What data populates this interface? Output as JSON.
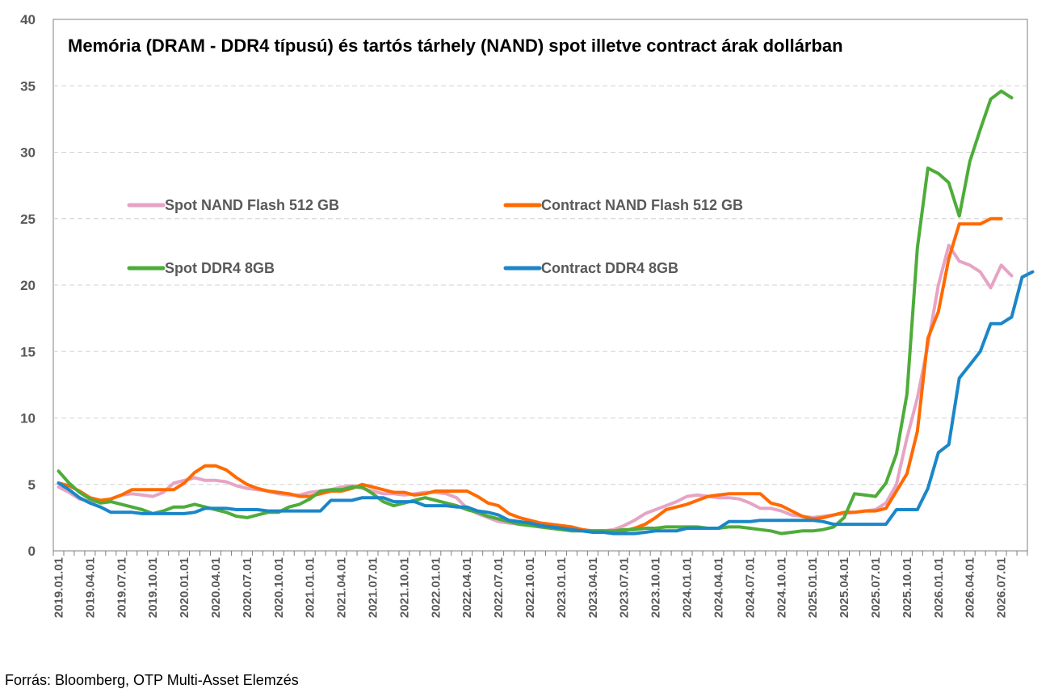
{
  "chart_data": {
    "type": "line",
    "title": "Memória (DRAM - DDR4 típusú) és tartós tárhely (NAND) spot illetve contract árak dollárban",
    "xlabel": "",
    "ylabel": "",
    "ylim": [
      0,
      40
    ],
    "yticks": [
      "0",
      "5",
      "10",
      "15",
      "20",
      "25",
      "30",
      "35",
      "40"
    ],
    "grid": true,
    "legend_position": "upper-left, two columns",
    "x_tick_labels": [
      "2019.01.01",
      "2019.04.01",
      "2019.07.01",
      "2019.10.01",
      "2020.01.01",
      "2020.04.01",
      "2020.07.01",
      "2020.10.01",
      "2021.01.01",
      "2021.04.01",
      "2021.07.01",
      "2021.10.01",
      "2022.01.01",
      "2022.04.01",
      "2022.07.01",
      "2022.10.01",
      "2023.01.01",
      "2023.04.01",
      "2023.07.01",
      "2023.10.01",
      "2024.01.01",
      "2024.04.01",
      "2024.07.01",
      "2024.10.01",
      "2025.01.01",
      "2025.04.01",
      "2025.07.01",
      "2025.10.01",
      "2026.01.01",
      "2026.04.01",
      "2026.07.01"
    ],
    "x_start_month": "2019.01",
    "series": [
      {
        "name": "Spot NAND Flash 512 GB",
        "color": "#E6A4C4",
        "values": [
          4.8,
          4.4,
          3.9,
          3.7,
          3.7,
          3.9,
          4.2,
          4.3,
          4.2,
          4.1,
          4.4,
          5.1,
          5.3,
          5.5,
          5.3,
          5.3,
          5.2,
          4.9,
          4.7,
          4.6,
          4.5,
          4.3,
          4.2,
          4.2,
          4.4,
          4.5,
          4.6,
          4.8,
          4.9,
          4.7,
          4.5,
          4.3,
          4.3,
          4.2,
          4.3,
          4.4,
          4.4,
          4.3,
          4.0,
          3.2,
          2.8,
          2.5,
          2.2,
          2.1,
          2.0,
          1.9,
          1.8,
          1.7,
          1.6,
          1.5,
          1.5,
          1.5,
          1.5,
          1.6,
          1.9,
          2.3,
          2.8,
          3.1,
          3.4,
          3.7,
          4.1,
          4.2,
          4.1,
          4.0,
          4.0,
          3.9,
          3.6,
          3.2,
          3.2,
          3.0,
          2.7,
          2.6,
          2.5,
          2.6,
          2.7,
          2.8,
          2.9,
          3.0,
          3.1,
          3.6,
          5.0,
          8.5,
          11.5,
          15.5,
          20.0,
          23.0,
          21.8,
          21.5,
          21.0,
          19.8,
          21.5,
          20.7
        ]
      },
      {
        "name": "Contract NAND Flash 512 GB",
        "color": "#FF6A00",
        "values": [
          5.1,
          4.9,
          4.5,
          4.0,
          3.8,
          3.9,
          4.2,
          4.6,
          4.6,
          4.6,
          4.6,
          4.6,
          5.1,
          5.9,
          6.4,
          6.4,
          6.1,
          5.5,
          5.0,
          4.7,
          4.5,
          4.4,
          4.3,
          4.1,
          4.1,
          4.3,
          4.5,
          4.5,
          4.7,
          5.0,
          4.8,
          4.6,
          4.4,
          4.4,
          4.2,
          4.3,
          4.5,
          4.5,
          4.5,
          4.5,
          4.1,
          3.6,
          3.4,
          2.8,
          2.5,
          2.3,
          2.1,
          2.0,
          1.9,
          1.8,
          1.6,
          1.5,
          1.5,
          1.4,
          1.5,
          1.7,
          2.0,
          2.5,
          3.1,
          3.3,
          3.5,
          3.8,
          4.1,
          4.2,
          4.3,
          4.3,
          4.3,
          4.3,
          3.6,
          3.4,
          3.0,
          2.6,
          2.4,
          2.5,
          2.7,
          2.9,
          2.9,
          3.0,
          3.0,
          3.2,
          4.5,
          5.8,
          9.0,
          16.0,
          18.0,
          22.0,
          24.6,
          24.6,
          24.6,
          25.0,
          25.0
        ]
      },
      {
        "name": "Spot DDR4 8GB",
        "color": "#4EAC3A",
        "values": [
          6.0,
          5.1,
          4.4,
          3.9,
          3.6,
          3.7,
          3.5,
          3.3,
          3.1,
          2.8,
          3.0,
          3.3,
          3.3,
          3.5,
          3.3,
          3.1,
          2.9,
          2.6,
          2.5,
          2.7,
          2.9,
          2.9,
          3.3,
          3.5,
          3.9,
          4.5,
          4.6,
          4.6,
          4.8,
          4.8,
          4.3,
          3.7,
          3.4,
          3.6,
          3.8,
          4.0,
          3.8,
          3.6,
          3.4,
          3.1,
          2.9,
          2.6,
          2.4,
          2.2,
          2.0,
          1.9,
          1.8,
          1.7,
          1.6,
          1.5,
          1.5,
          1.5,
          1.5,
          1.5,
          1.6,
          1.6,
          1.7,
          1.7,
          1.8,
          1.8,
          1.8,
          1.8,
          1.7,
          1.7,
          1.8,
          1.8,
          1.7,
          1.6,
          1.5,
          1.3,
          1.4,
          1.5,
          1.5,
          1.6,
          1.8,
          2.5,
          4.3,
          4.2,
          4.1,
          5.1,
          7.3,
          11.8,
          22.8,
          28.8,
          28.4,
          27.7,
          25.2,
          29.3,
          31.7,
          34.0,
          34.6,
          34.1
        ]
      },
      {
        "name": "Contract DDR4 8GB",
        "color": "#1B86C8",
        "values": [
          5.1,
          4.6,
          4.0,
          3.6,
          3.3,
          2.9,
          2.9,
          2.9,
          2.8,
          2.8,
          2.8,
          2.8,
          2.8,
          2.9,
          3.2,
          3.2,
          3.2,
          3.1,
          3.1,
          3.1,
          3.0,
          3.0,
          3.0,
          3.0,
          3.0,
          3.0,
          3.8,
          3.8,
          3.8,
          4.0,
          4.0,
          4.0,
          3.7,
          3.7,
          3.7,
          3.4,
          3.4,
          3.4,
          3.3,
          3.3,
          3.0,
          2.9,
          2.7,
          2.3,
          2.2,
          2.1,
          1.9,
          1.8,
          1.7,
          1.6,
          1.5,
          1.4,
          1.4,
          1.3,
          1.3,
          1.3,
          1.4,
          1.5,
          1.5,
          1.5,
          1.7,
          1.7,
          1.7,
          1.7,
          2.2,
          2.2,
          2.2,
          2.3,
          2.3,
          2.3,
          2.3,
          2.3,
          2.3,
          2.2,
          2.0,
          2.0,
          2.0,
          2.0,
          2.0,
          2.0,
          3.1,
          3.1,
          3.1,
          4.7,
          7.4,
          8.0,
          13.0,
          14.0,
          15.0,
          17.1,
          17.1,
          17.6,
          20.6,
          21.0
        ]
      }
    ]
  },
  "source_note": "Forrás: Bloomberg, OTP Multi-Asset Elemzés"
}
